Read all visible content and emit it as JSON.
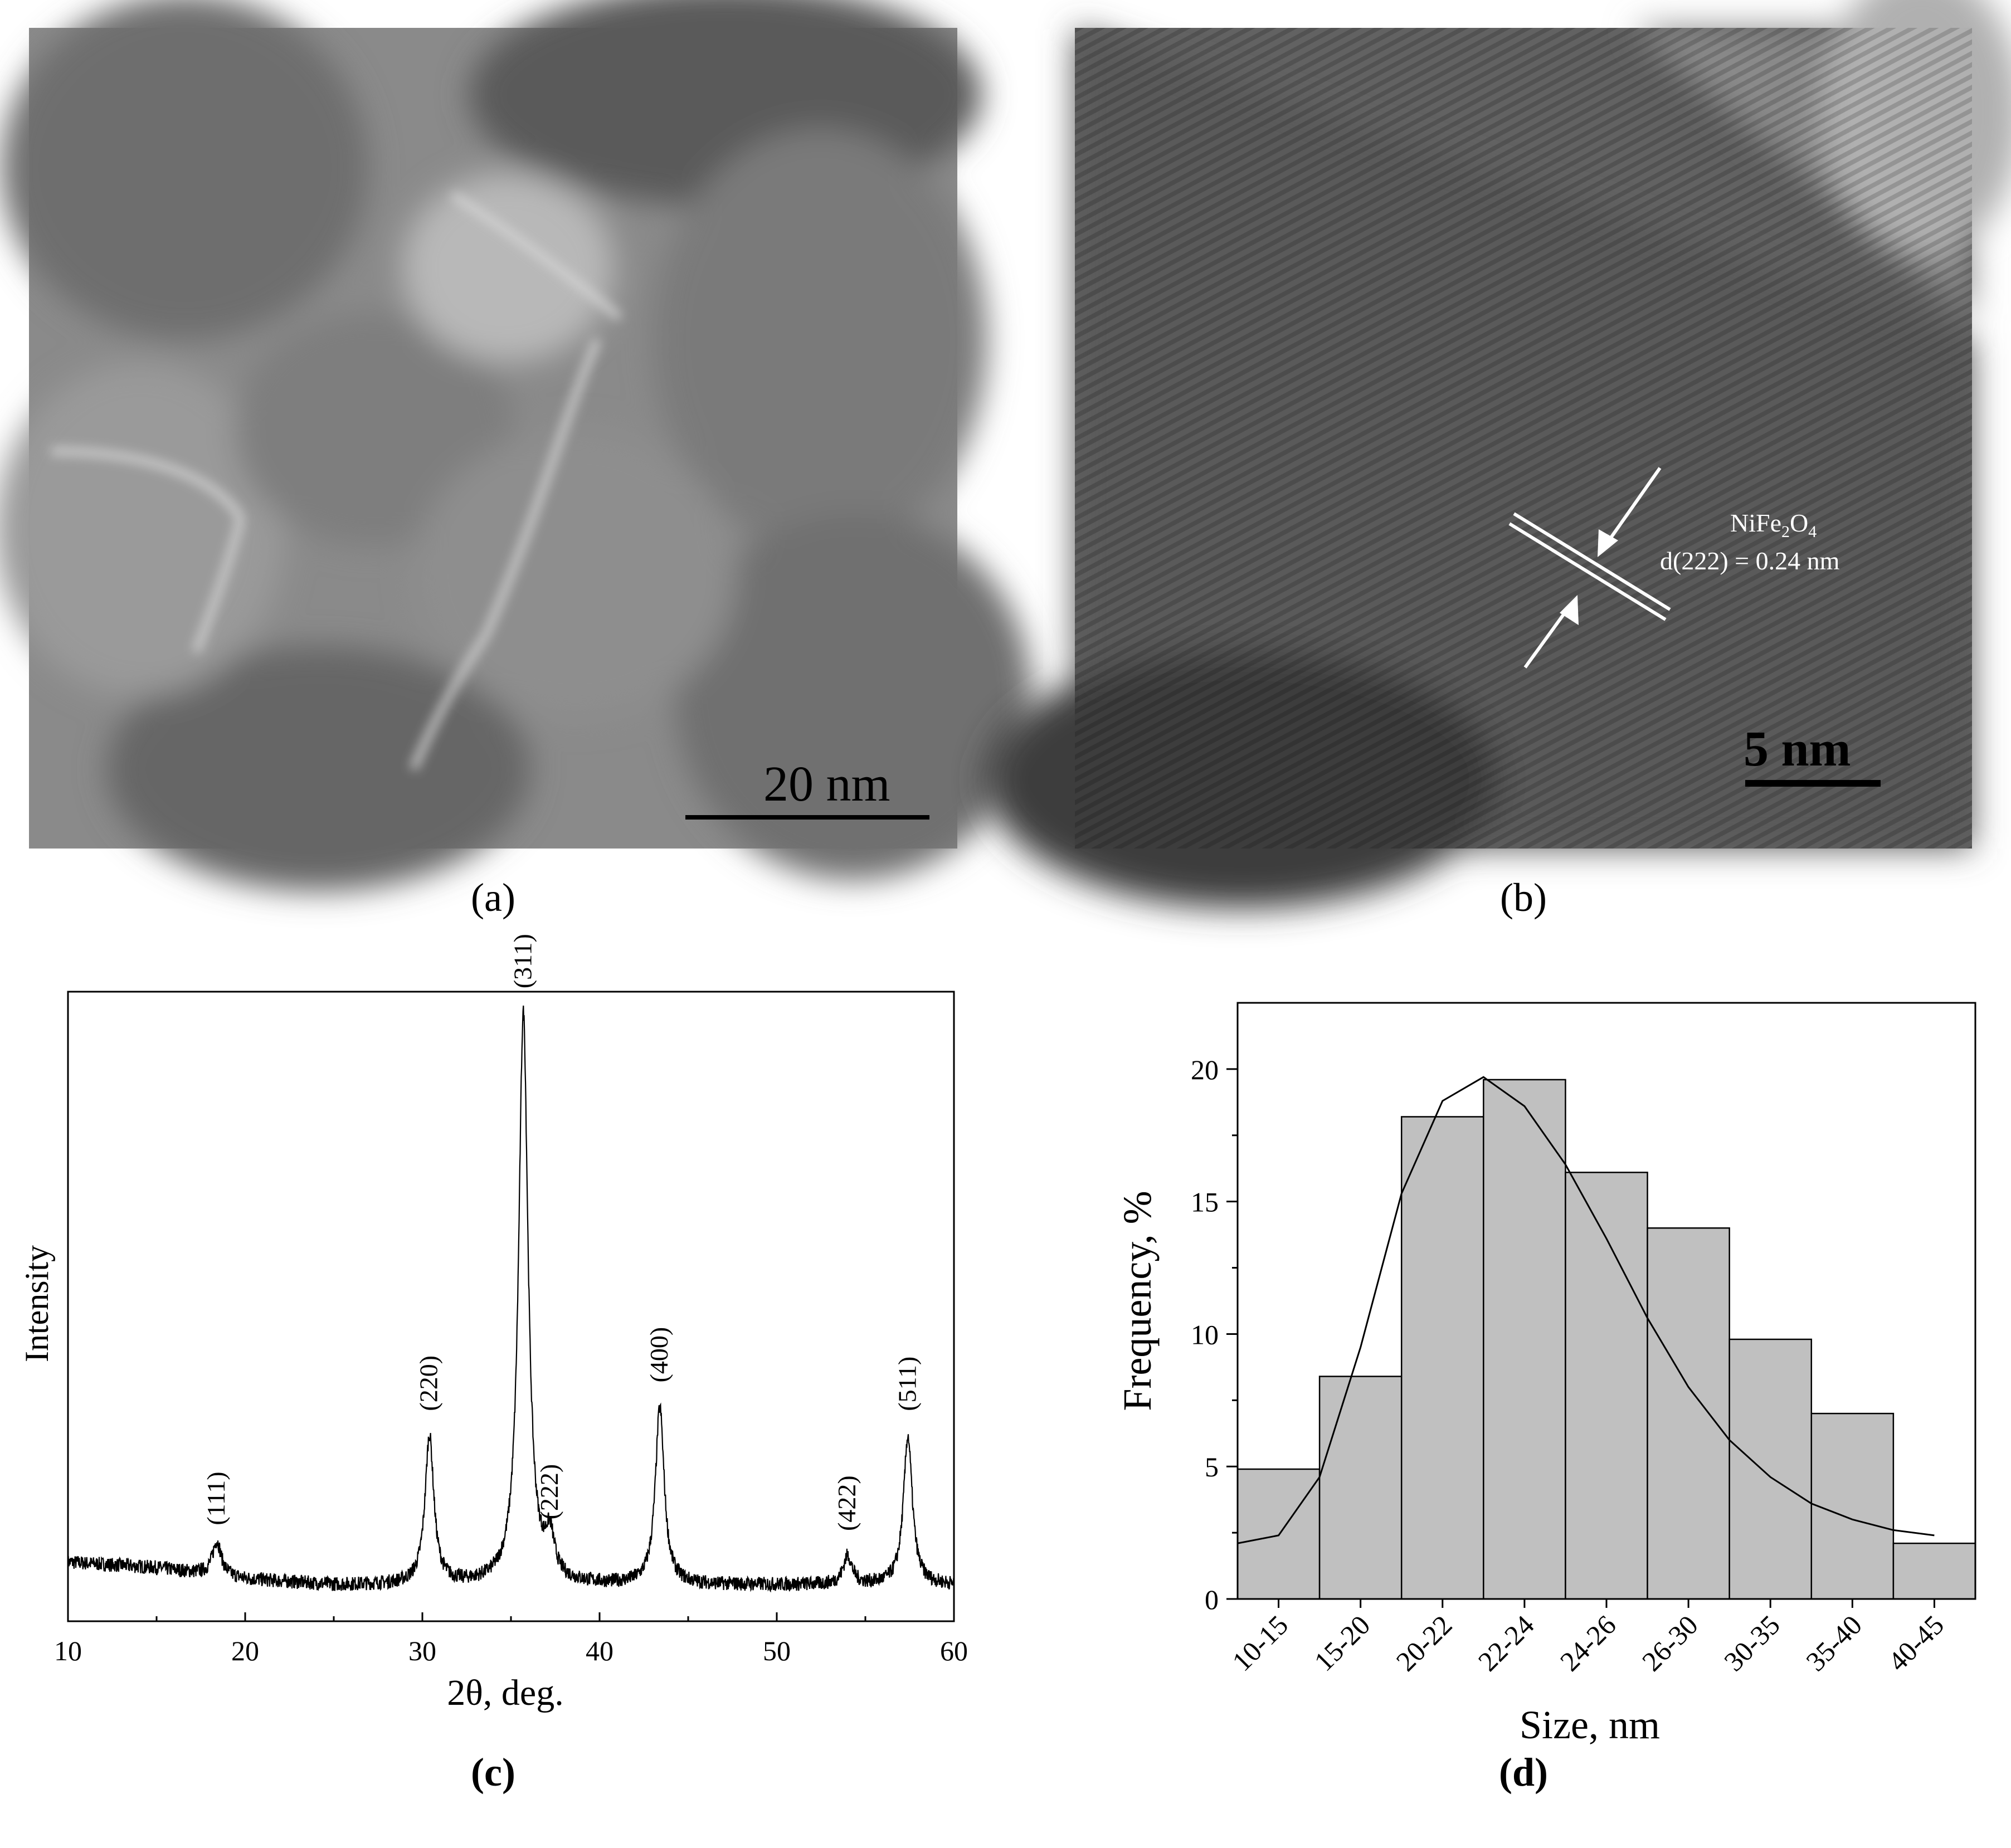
{
  "panels": {
    "a": {
      "caption": "(a)",
      "scale_bar": "20 nm"
    },
    "b": {
      "caption": "(b)",
      "scale_bar": "5 nm",
      "annotation_compound": "NiFe",
      "annotation_sub1": "2",
      "annotation_o": "O",
      "annotation_sub2": "4",
      "annotation_spacing": "d(222) = 0.24 nm"
    },
    "c": {
      "caption": "(c)",
      "xlabel": "2θ, deg.",
      "ylabel": "Intensity"
    },
    "d": {
      "caption": "(d)",
      "xlabel": "Size, nm",
      "ylabel": "Frequency, %"
    }
  },
  "colors": {
    "bar_fill": "#c0c0c0",
    "line": "#000000"
  },
  "chart_data": [
    {
      "panel": "c",
      "type": "line",
      "title": "",
      "xlabel": "2θ, deg.",
      "ylabel": "Intensity",
      "xlim": [
        10,
        60
      ],
      "xticks": [
        10,
        20,
        30,
        40,
        50,
        60
      ],
      "y_ticks_shown": false,
      "peaks": [
        {
          "label": "(111)",
          "x": 18.4,
          "rel_height": 0.06
        },
        {
          "label": "(220)",
          "x": 30.4,
          "rel_height": 0.26
        },
        {
          "label": "(311)",
          "x": 35.7,
          "rel_height": 1.0
        },
        {
          "label": "(222)",
          "x": 37.2,
          "rel_height": 0.07
        },
        {
          "label": "(400)",
          "x": 43.4,
          "rel_height": 0.31
        },
        {
          "label": "(422)",
          "x": 54.0,
          "rel_height": 0.05
        },
        {
          "label": "(511)",
          "x": 57.4,
          "rel_height": 0.26
        }
      ],
      "background": [
        [
          10,
          0.04
        ],
        [
          15,
          0.03
        ],
        [
          20,
          0.01
        ],
        [
          25,
          0.0
        ],
        [
          30,
          0.0
        ],
        [
          40,
          0.0
        ],
        [
          50,
          0.0
        ],
        [
          60,
          0.0
        ]
      ]
    },
    {
      "panel": "d",
      "type": "bar",
      "title": "",
      "xlabel": "Size, nm",
      "ylabel": "Frequency, %",
      "categories": [
        "10-15",
        "15-20",
        "20-22",
        "22-24",
        "24-26",
        "26-30",
        "30-35",
        "35-40",
        "40-45"
      ],
      "values": [
        4.9,
        8.4,
        18.2,
        19.6,
        16.1,
        14.0,
        9.8,
        7.0,
        2.1
      ],
      "ylim": [
        0,
        22.5
      ],
      "yticks": [
        0,
        5,
        10,
        15,
        20
      ],
      "fit_curve": {
        "type": "lognormal-like",
        "points_by_category_index": [
          [
            0,
            2.1
          ],
          [
            0.5,
            2.4
          ],
          [
            1,
            4.6
          ],
          [
            1.5,
            9.5
          ],
          [
            2,
            15.3
          ],
          [
            2.5,
            18.8
          ],
          [
            3,
            19.7
          ],
          [
            3.5,
            18.6
          ],
          [
            4,
            16.4
          ],
          [
            4.5,
            13.6
          ],
          [
            5,
            10.6
          ],
          [
            5.5,
            8.0
          ],
          [
            6,
            6.0
          ],
          [
            6.5,
            4.6
          ],
          [
            7,
            3.6
          ],
          [
            7.5,
            3.0
          ],
          [
            8,
            2.6
          ],
          [
            8.5,
            2.4
          ]
        ]
      }
    }
  ]
}
